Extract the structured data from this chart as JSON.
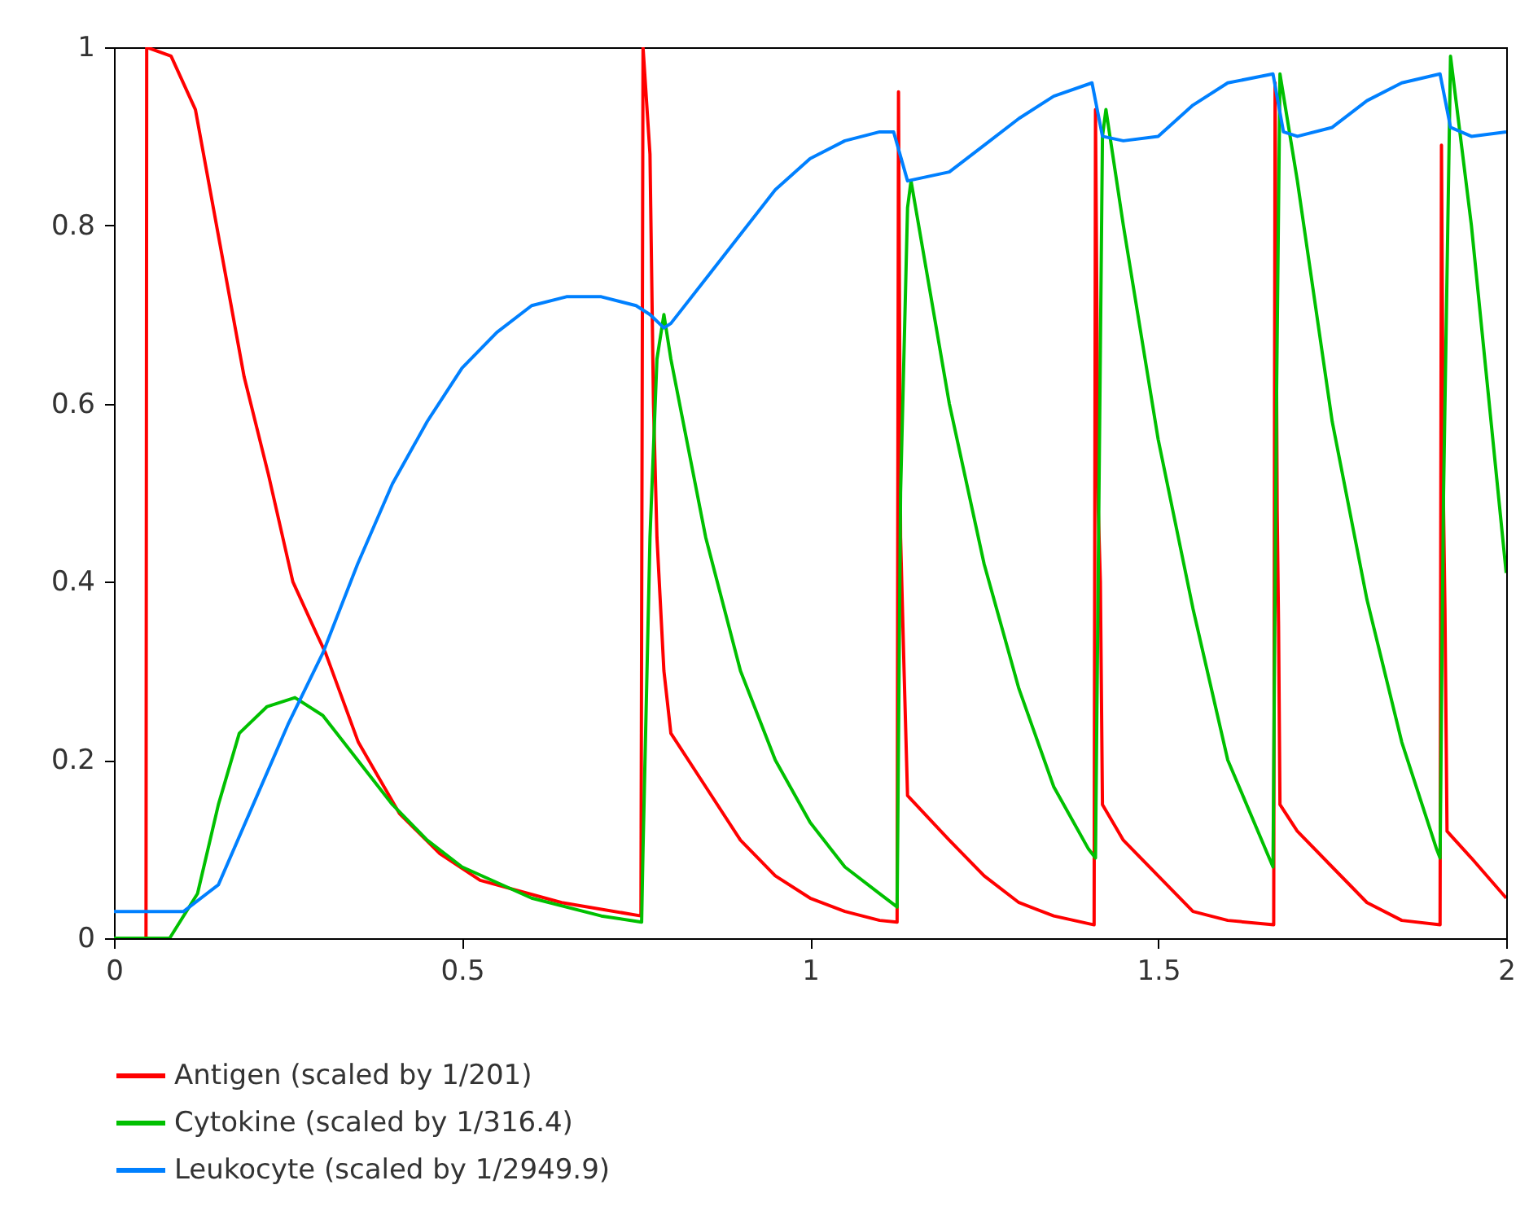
{
  "chart_data": {
    "type": "line",
    "xlim": [
      0,
      2
    ],
    "xticks": [
      0,
      0.5,
      1,
      1.5,
      2
    ],
    "ylim": [
      0,
      1
    ],
    "yticks": [
      0,
      0.2,
      0.4,
      0.6,
      0.8,
      1
    ],
    "grid": false,
    "legend": "bottom",
    "series": [
      {
        "name": "Antigen (scaled by 1/201)",
        "color": "#ff0000",
        "x": [
          0,
          0.046,
          0.047,
          0.082,
          0.117,
          0.152,
          0.187,
          0.222,
          0.257,
          0.292,
          0.304,
          0.351,
          0.41,
          0.468,
          0.526,
          0.643,
          0.757,
          0.76,
          0.77,
          0.775,
          0.78,
          0.79,
          0.8,
          0.85,
          0.9,
          0.95,
          1.0,
          1.05,
          1.1,
          1.125,
          1.127,
          1.13,
          1.135,
          1.14,
          1.2,
          1.25,
          1.3,
          1.35,
          1.408,
          1.41,
          1.414,
          1.417,
          1.42,
          1.45,
          1.5,
          1.55,
          1.6,
          1.666,
          1.668,
          1.671,
          1.673,
          1.675,
          1.7,
          1.75,
          1.8,
          1.85,
          1.905,
          1.907,
          1.91,
          1.912,
          1.915,
          1.95,
          2.0
        ],
        "values": [
          0,
          0,
          1,
          0.99,
          0.93,
          0.78,
          0.63,
          0.52,
          0.4,
          0.34,
          0.32,
          0.22,
          0.14,
          0.095,
          0.065,
          0.04,
          0.025,
          1.0,
          0.88,
          0.6,
          0.45,
          0.3,
          0.23,
          0.17,
          0.11,
          0.07,
          0.045,
          0.03,
          0.02,
          0.018,
          0.95,
          0.45,
          0.3,
          0.16,
          0.11,
          0.07,
          0.04,
          0.025,
          0.015,
          0.93,
          0.48,
          0.4,
          0.15,
          0.11,
          0.07,
          0.03,
          0.02,
          0.015,
          0.96,
          0.48,
          0.35,
          0.15,
          0.12,
          0.08,
          0.04,
          0.02,
          0.015,
          0.89,
          0.48,
          0.37,
          0.12,
          0.09,
          0.045
        ]
      },
      {
        "name": "Cytokine (scaled by 1/316.4)",
        "color": "#00c000",
        "x": [
          0,
          0.08,
          0.12,
          0.15,
          0.18,
          0.22,
          0.26,
          0.3,
          0.35,
          0.4,
          0.45,
          0.5,
          0.6,
          0.7,
          0.758,
          0.76,
          0.77,
          0.78,
          0.79,
          0.8,
          0.85,
          0.9,
          0.95,
          1.0,
          1.05,
          1.1,
          1.125,
          1.13,
          1.14,
          1.145,
          1.2,
          1.25,
          1.3,
          1.35,
          1.4,
          1.41,
          1.415,
          1.42,
          1.425,
          1.45,
          1.5,
          1.55,
          1.6,
          1.665,
          1.67,
          1.675,
          1.7,
          1.75,
          1.8,
          1.85,
          1.9,
          1.905,
          1.91,
          1.92,
          1.95,
          2.0
        ],
        "values": [
          0,
          0,
          0.05,
          0.15,
          0.23,
          0.26,
          0.27,
          0.25,
          0.2,
          0.15,
          0.11,
          0.08,
          0.045,
          0.025,
          0.018,
          0.1,
          0.45,
          0.65,
          0.7,
          0.65,
          0.45,
          0.3,
          0.2,
          0.13,
          0.08,
          0.05,
          0.035,
          0.5,
          0.82,
          0.85,
          0.6,
          0.42,
          0.28,
          0.17,
          0.1,
          0.09,
          0.5,
          0.9,
          0.93,
          0.8,
          0.56,
          0.37,
          0.2,
          0.08,
          0.6,
          0.97,
          0.85,
          0.58,
          0.38,
          0.22,
          0.1,
          0.09,
          0.5,
          0.99,
          0.8,
          0.41
        ]
      },
      {
        "name": "Leukocyte (scaled by 1/2949.9)",
        "color": "#0080ff",
        "x": [
          0,
          0.1,
          0.15,
          0.2,
          0.25,
          0.3,
          0.35,
          0.4,
          0.45,
          0.5,
          0.55,
          0.6,
          0.65,
          0.7,
          0.75,
          0.77,
          0.79,
          0.8,
          0.85,
          0.9,
          0.95,
          1.0,
          1.05,
          1.1,
          1.12,
          1.14,
          1.2,
          1.25,
          1.3,
          1.35,
          1.405,
          1.42,
          1.45,
          1.5,
          1.55,
          1.6,
          1.665,
          1.68,
          1.7,
          1.75,
          1.8,
          1.85,
          1.905,
          1.92,
          1.95,
          2.0
        ],
        "values": [
          0.03,
          0.03,
          0.06,
          0.15,
          0.24,
          0.32,
          0.42,
          0.51,
          0.58,
          0.64,
          0.68,
          0.71,
          0.72,
          0.72,
          0.71,
          0.7,
          0.685,
          0.69,
          0.74,
          0.79,
          0.84,
          0.875,
          0.895,
          0.905,
          0.905,
          0.85,
          0.86,
          0.89,
          0.92,
          0.945,
          0.96,
          0.9,
          0.895,
          0.9,
          0.935,
          0.96,
          0.97,
          0.905,
          0.9,
          0.91,
          0.94,
          0.96,
          0.97,
          0.91,
          0.9,
          0.905
        ]
      }
    ]
  }
}
